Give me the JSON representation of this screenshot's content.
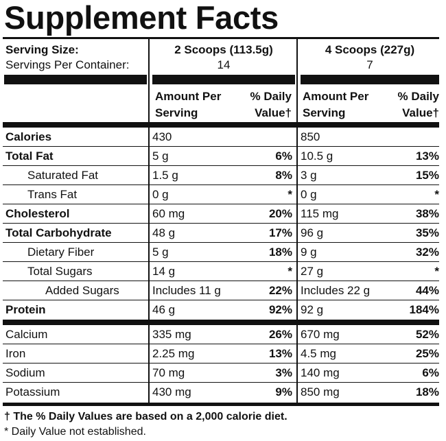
{
  "title": "Supplement Facts",
  "serving": {
    "size_label": "Serving Size:",
    "per_container_label": "Servings Per Container:",
    "col1_size": "2 Scoops (113.5g)",
    "col1_servings": "14",
    "col2_size": "4 Scoops (227g)",
    "col2_servings": "7"
  },
  "headers": {
    "amount": "Amount Per Serving",
    "amount_line1": "Amount Per",
    "amount_line2": "Serving",
    "dv_line1": "% Daily",
    "dv_line2": "Value†"
  },
  "rows": [
    {
      "name": "Calories",
      "bold": true,
      "indent": 0,
      "a1": "430",
      "d1": "",
      "a2": "850",
      "d2": ""
    },
    {
      "name": "Total Fat",
      "bold": true,
      "indent": 0,
      "a1": "5 g",
      "d1": "6%",
      "a2": "10.5 g",
      "d2": "13%"
    },
    {
      "name": "Saturated Fat",
      "bold": false,
      "indent": 1,
      "a1": "1.5 g",
      "d1": "8%",
      "a2": "3 g",
      "d2": "15%"
    },
    {
      "name": "Trans Fat",
      "bold": false,
      "indent": 1,
      "a1": "0 g",
      "d1": "*",
      "a2": "0 g",
      "d2": "*"
    },
    {
      "name": "Cholesterol",
      "bold": true,
      "indent": 0,
      "a1": "60 mg",
      "d1": "20%",
      "a2": "115 mg",
      "d2": "38%"
    },
    {
      "name": "Total Carbohydrate",
      "bold": true,
      "indent": 0,
      "a1": "48 g",
      "d1": "17%",
      "a2": "96 g",
      "d2": "35%"
    },
    {
      "name": "Dietary Fiber",
      "bold": false,
      "indent": 1,
      "a1": "5 g",
      "d1": "18%",
      "a2": "9 g",
      "d2": "32%"
    },
    {
      "name": "Total Sugars",
      "bold": false,
      "indent": 1,
      "a1": "14 g",
      "d1": "*",
      "a2": "27 g",
      "d2": "*"
    },
    {
      "name": "Added Sugars",
      "bold": false,
      "indent": 2,
      "a1": "Includes 11 g",
      "d1": "22%",
      "a2": "Includes 22 g",
      "d2": "44%"
    },
    {
      "name": "Protein",
      "bold": true,
      "indent": 0,
      "a1": "46 g",
      "d1": "92%",
      "a2": "92 g",
      "d2": "184%"
    },
    {
      "name": "Calcium",
      "bold": false,
      "indent": 0,
      "a1": "335 mg",
      "d1": "26%",
      "a2": "670 mg",
      "d2": "52%"
    },
    {
      "name": "Iron",
      "bold": false,
      "indent": 0,
      "a1": "2.25 mg",
      "d1": "13%",
      "a2": "4.5 mg",
      "d2": "25%"
    },
    {
      "name": "Sodium",
      "bold": false,
      "indent": 0,
      "a1": "70 mg",
      "d1": "3%",
      "a2": "140 mg",
      "d2": "6%"
    },
    {
      "name": "Potassium",
      "bold": false,
      "indent": 0,
      "a1": "430 mg",
      "d1": "9%",
      "a2": "850 mg",
      "d2": "18%"
    }
  ],
  "footnotes": {
    "daily_values": "† The % Daily Values are based on a 2,000 calorie diet.",
    "not_established": "* Daily Value not established."
  }
}
